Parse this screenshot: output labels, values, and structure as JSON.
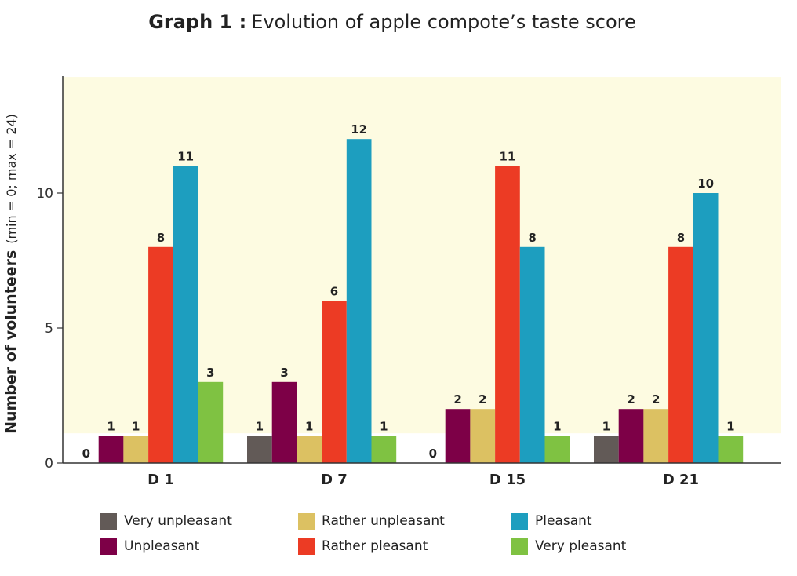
{
  "chart_data": {
    "type": "bar",
    "title_prefix": "Graph 1 :",
    "title": "Evolution of apple compote’s taste score",
    "ylabel_bold": "Number of volunteers",
    "ylabel_note": "(min = 0; max = 24)",
    "xlabel": "",
    "categories": [
      "D 1",
      "D 7",
      "D 15",
      "D 21"
    ],
    "y_ticks": [
      "0",
      "5",
      "10"
    ],
    "ylim": [
      0,
      14.3
    ],
    "grid": false,
    "legend_position": "bottom",
    "series": [
      {
        "name": "Very unpleasant",
        "color": "#625a57",
        "values": [
          0,
          1,
          0,
          1
        ]
      },
      {
        "name": "Unpleasant",
        "color": "#7d0047",
        "values": [
          1,
          3,
          2,
          2
        ]
      },
      {
        "name": "Rather unpleasant",
        "color": "#dcc162",
        "values": [
          1,
          1,
          2,
          2
        ]
      },
      {
        "name": "Rather pleasant",
        "color": "#ec3b24",
        "values": [
          8,
          6,
          11,
          8
        ]
      },
      {
        "name": "Pleasant",
        "color": "#1d9ebf",
        "values": [
          11,
          12,
          8,
          10
        ]
      },
      {
        "name": "Very pleasant",
        "color": "#7fc242",
        "values": [
          3,
          1,
          1,
          1
        ]
      }
    ],
    "data_labels": [
      [
        "0",
        "1",
        "1",
        "8",
        "11",
        "3"
      ],
      [
        "1",
        "3",
        "1",
        "6",
        "12",
        "1"
      ],
      [
        "0",
        "2",
        "2",
        "11",
        "8",
        "1"
      ],
      [
        "1",
        "2",
        "2",
        "8",
        "10",
        "1"
      ]
    ],
    "background_band": {
      "color": "#fdfbe1",
      "from": 1.1,
      "to": 14.3
    }
  }
}
